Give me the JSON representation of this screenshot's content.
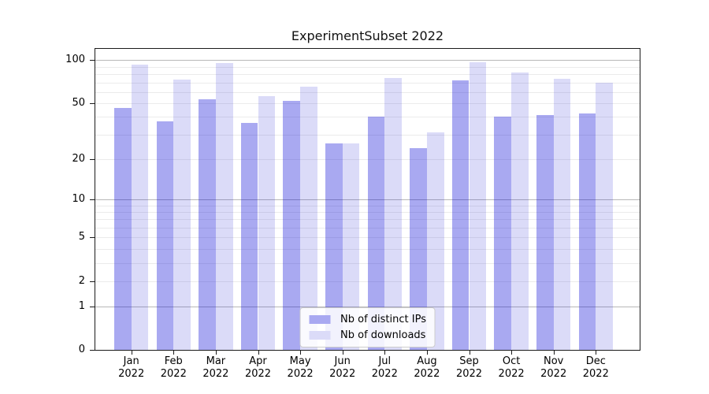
{
  "title": "ExperimentSubset 2022",
  "chart_data": {
    "type": "bar",
    "title": "ExperimentSubset 2022",
    "categories": [
      "Jan 2022",
      "Feb 2022",
      "Mar 2022",
      "Apr 2022",
      "May 2022",
      "Jun 2022",
      "Jul 2022",
      "Aug 2022",
      "Sep 2022",
      "Oct 2022",
      "Nov 2022",
      "Dec 2022"
    ],
    "series": [
      {
        "name": "Nb of distinct IPs",
        "color": "#a9a9f1",
        "fill": "rgba(2,2,214,0.34)",
        "values": [
          46,
          37,
          53,
          36,
          52,
          26,
          40,
          24,
          72,
          40,
          41,
          42
        ]
      },
      {
        "name": "Nb of downloads",
        "color": "#dbdbf8",
        "fill": "rgba(15,15,208,0.15)",
        "values": [
          93,
          73,
          95,
          56,
          65,
          26,
          75,
          31,
          97,
          82,
          74,
          70
        ]
      }
    ],
    "yscale": "log1p",
    "ylim": [
      0,
      120
    ],
    "ytick_labels": [
      "100",
      "50",
      "20",
      "10",
      "5",
      "2",
      "1",
      "0"
    ],
    "yticks": [
      100,
      50,
      20,
      10,
      5,
      2,
      1,
      0
    ],
    "major_gridlines": [
      1,
      10,
      100
    ],
    "minor_gridlines": [
      2,
      3,
      4,
      5,
      6,
      7,
      8,
      9,
      20,
      30,
      40,
      50,
      60,
      70,
      80,
      90
    ],
    "grid": true,
    "legend_position": "lower center",
    "xlabel": "",
    "ylabel": ""
  }
}
